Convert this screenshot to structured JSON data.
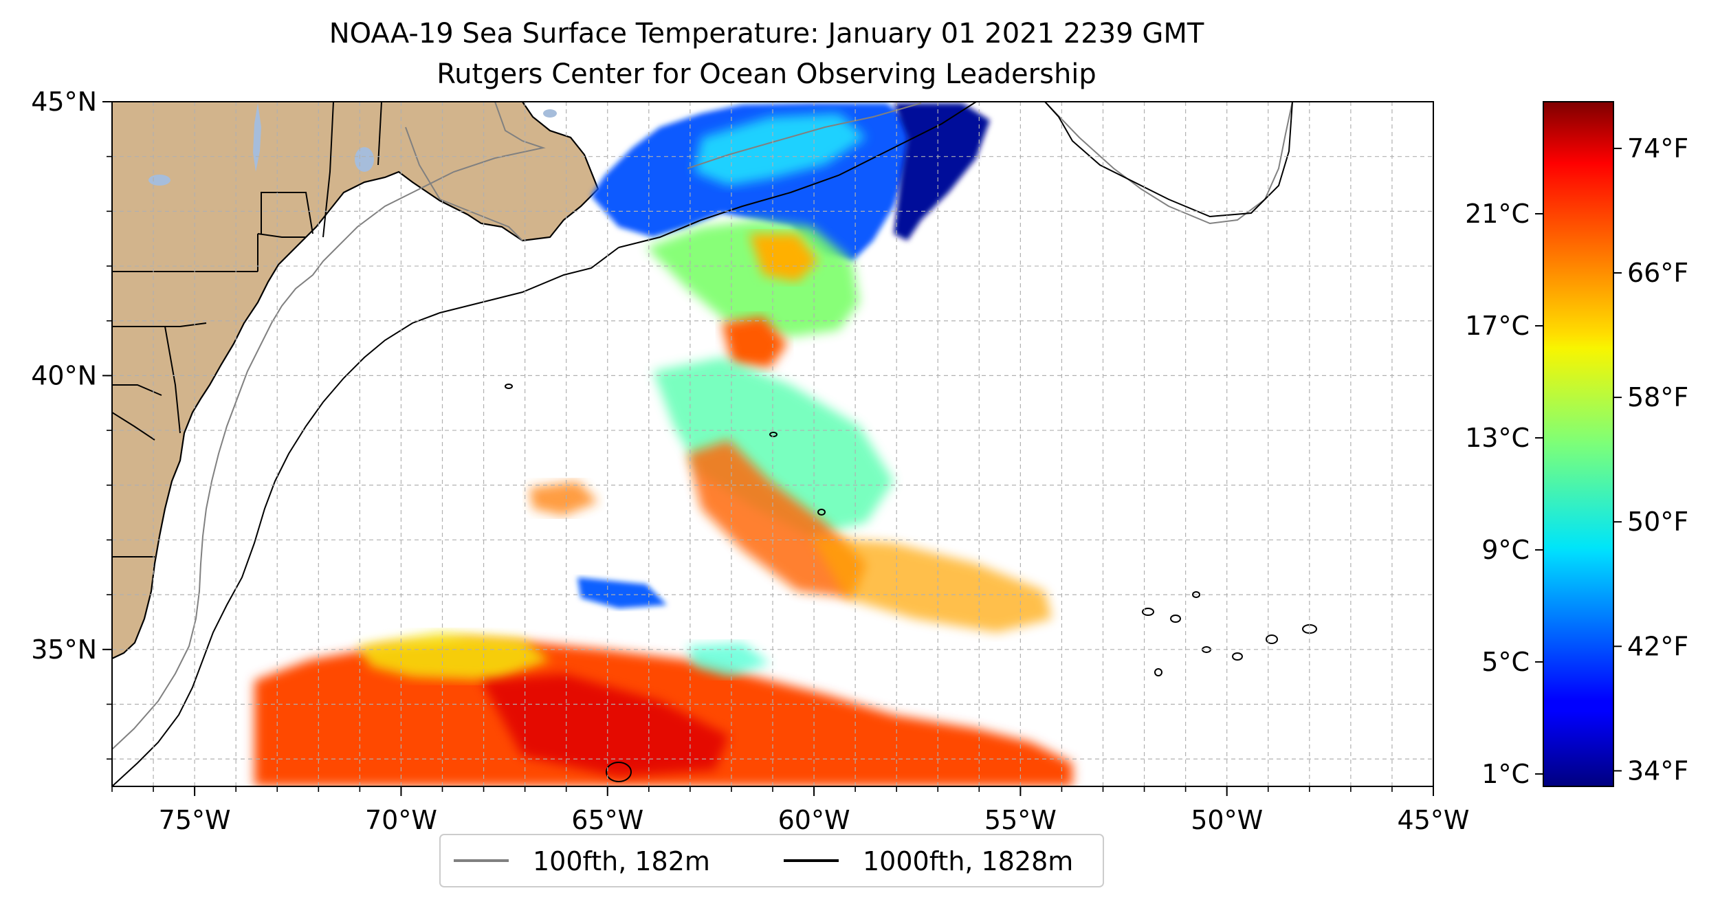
{
  "title": {
    "line1": "NOAA-19 Sea Surface Temperature: January 01 2021 2239 GMT",
    "line2": "Rutgers Center for Ocean Observing Leadership"
  },
  "map": {
    "lon_range": [
      -77,
      -45
    ],
    "lat_range": [
      32.5,
      45
    ],
    "x_ticks": [
      {
        "value": -75,
        "label": "75°W"
      },
      {
        "value": -70,
        "label": "70°W"
      },
      {
        "value": -65,
        "label": "65°W"
      },
      {
        "value": -60,
        "label": "60°W"
      },
      {
        "value": -55,
        "label": "55°W"
      },
      {
        "value": -50,
        "label": "50°W"
      },
      {
        "value": -45,
        "label": "45°W"
      }
    ],
    "y_ticks": [
      {
        "value": 45,
        "label": "45°N"
      },
      {
        "value": 40,
        "label": "40°N"
      },
      {
        "value": 35,
        "label": "35°N"
      }
    ],
    "gridlines": true,
    "land_color": "#d2b48c",
    "lake_color": "#a6bddb"
  },
  "legend": {
    "placement": "bottom-center",
    "items": [
      {
        "label": "100fth, 182m",
        "color": "#808080"
      },
      {
        "label": "1000fth, 1828m",
        "color": "#000000"
      }
    ]
  },
  "colorbar": {
    "colormap": "jet",
    "range_f": [
      33,
      77
    ],
    "left_ticks": [
      {
        "value_c": 1,
        "label": "1°C"
      },
      {
        "value_c": 5,
        "label": "5°C"
      },
      {
        "value_c": 9,
        "label": "9°C"
      },
      {
        "value_c": 13,
        "label": "13°C"
      },
      {
        "value_c": 17,
        "label": "17°C"
      },
      {
        "value_c": 21,
        "label": "21°C"
      }
    ],
    "right_ticks": [
      {
        "value_f": 34,
        "label": "34°F"
      },
      {
        "value_f": 42,
        "label": "42°F"
      },
      {
        "value_f": 50,
        "label": "50°F"
      },
      {
        "value_f": 58,
        "label": "58°F"
      },
      {
        "value_f": 66,
        "label": "66°F"
      },
      {
        "value_f": 74,
        "label": "74°F"
      }
    ]
  }
}
